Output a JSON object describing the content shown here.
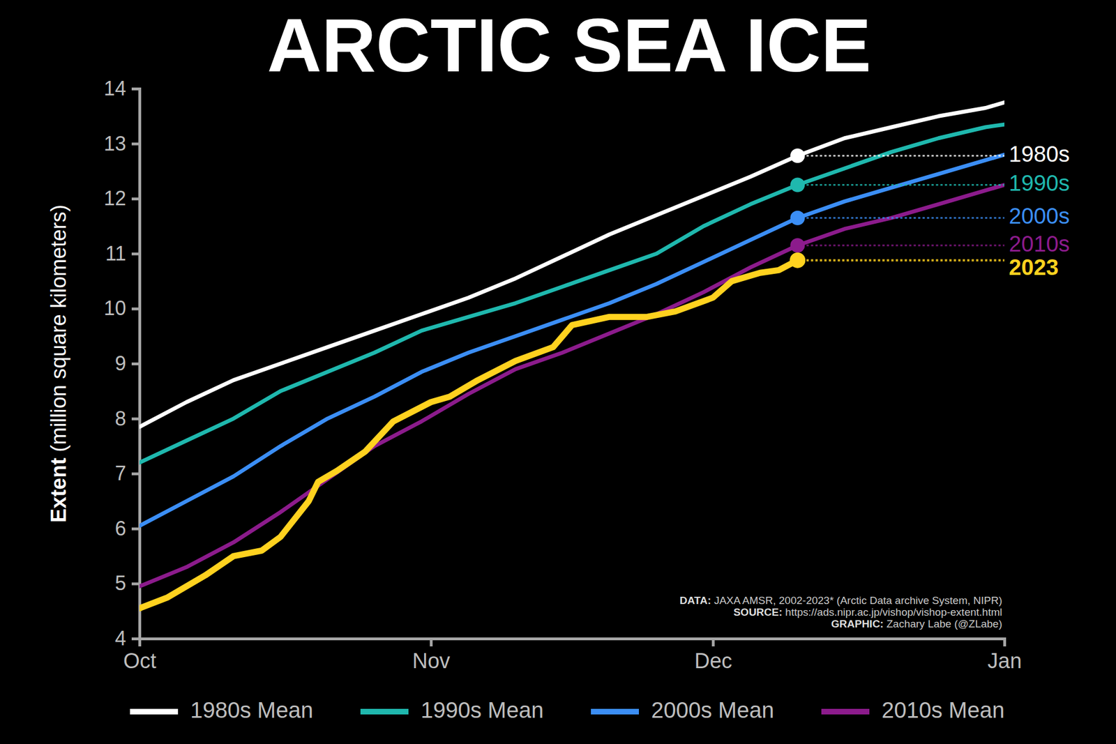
{
  "chart_data": {
    "type": "line",
    "title": "ARCTIC SEA ICE",
    "ylabel": "Extent (million square kilometers)",
    "x": [
      0,
      5,
      10,
      15,
      20,
      25,
      30,
      35,
      40,
      45,
      50,
      55,
      60,
      65,
      70,
      75,
      80,
      85,
      90,
      92
    ],
    "xlim": [
      0,
      92
    ],
    "xticks": [
      {
        "value": 0,
        "label": "Oct"
      },
      {
        "value": 31,
        "label": "Nov"
      },
      {
        "value": 61,
        "label": "Dec"
      },
      {
        "value": 92,
        "label": "Jan"
      }
    ],
    "ylim": [
      4,
      14
    ],
    "yticks": [
      4,
      5,
      6,
      7,
      8,
      9,
      10,
      11,
      12,
      13,
      14
    ],
    "grid": false,
    "legend": "bottom",
    "series": [
      {
        "name": "1980s Mean",
        "color": "#ffffff",
        "values": [
          7.85,
          8.3,
          8.7,
          9.0,
          9.3,
          9.6,
          9.9,
          10.2,
          10.55,
          10.95,
          11.35,
          11.7,
          12.05,
          12.4,
          12.78,
          13.1,
          13.3,
          13.5,
          13.65,
          13.75
        ]
      },
      {
        "name": "1990s Mean",
        "color": "#1fb8ae",
        "values": [
          7.2,
          7.6,
          8.0,
          8.5,
          8.85,
          9.2,
          9.6,
          9.85,
          10.1,
          10.4,
          10.7,
          11.0,
          11.5,
          11.9,
          12.25,
          12.55,
          12.85,
          13.1,
          13.3,
          13.35
        ]
      },
      {
        "name": "2000s Mean",
        "color": "#3b8ef5",
        "values": [
          6.05,
          6.5,
          6.95,
          7.5,
          8.0,
          8.4,
          8.85,
          9.2,
          9.5,
          9.8,
          10.1,
          10.45,
          10.85,
          11.25,
          11.65,
          11.95,
          12.2,
          12.45,
          12.7,
          12.8
        ]
      },
      {
        "name": "2010s Mean",
        "color": "#8c1b8c",
        "values": [
          4.95,
          5.3,
          5.75,
          6.3,
          6.9,
          7.5,
          7.95,
          8.45,
          8.9,
          9.2,
          9.55,
          9.9,
          10.3,
          10.75,
          11.15,
          11.45,
          11.65,
          11.9,
          12.15,
          12.25
        ]
      }
    ],
    "highlight": {
      "name": "2023",
      "color": "#ffd21f",
      "x": [
        0,
        3,
        7,
        10,
        13,
        15,
        18,
        19,
        21,
        24,
        27,
        31,
        33,
        36,
        40,
        44,
        46,
        50,
        54,
        57,
        61,
        63,
        66,
        68,
        70
      ],
      "values": [
        4.55,
        4.75,
        5.15,
        5.5,
        5.6,
        5.85,
        6.5,
        6.85,
        7.05,
        7.4,
        7.95,
        8.3,
        8.4,
        8.7,
        9.05,
        9.3,
        9.7,
        9.85,
        9.85,
        9.95,
        10.2,
        10.5,
        10.65,
        10.7,
        10.88
      ]
    },
    "annotations": [
      {
        "text": "1980s",
        "x": 70,
        "y": 12.78,
        "color": "#ffffff"
      },
      {
        "text": "1990s",
        "x": 70,
        "y": 12.25,
        "color": "#1fb8ae"
      },
      {
        "text": "2000s",
        "x": 70,
        "y": 11.65,
        "color": "#3b8ef5"
      },
      {
        "text": "2010s",
        "x": 70,
        "y": 11.15,
        "color": "#8c1b8c"
      }
    ],
    "notes": [
      {
        "label": "DATA:",
        "text": "JAXA AMSR, 2002-2023* (Arctic Data archive System, NIPR)"
      },
      {
        "label": "SOURCE:",
        "text": "https://ads.nipr.ac.jp/vishop/vishop-extent.html"
      },
      {
        "label": "GRAPHIC:",
        "text": "Zachary Labe (@ZLabe)"
      }
    ]
  }
}
